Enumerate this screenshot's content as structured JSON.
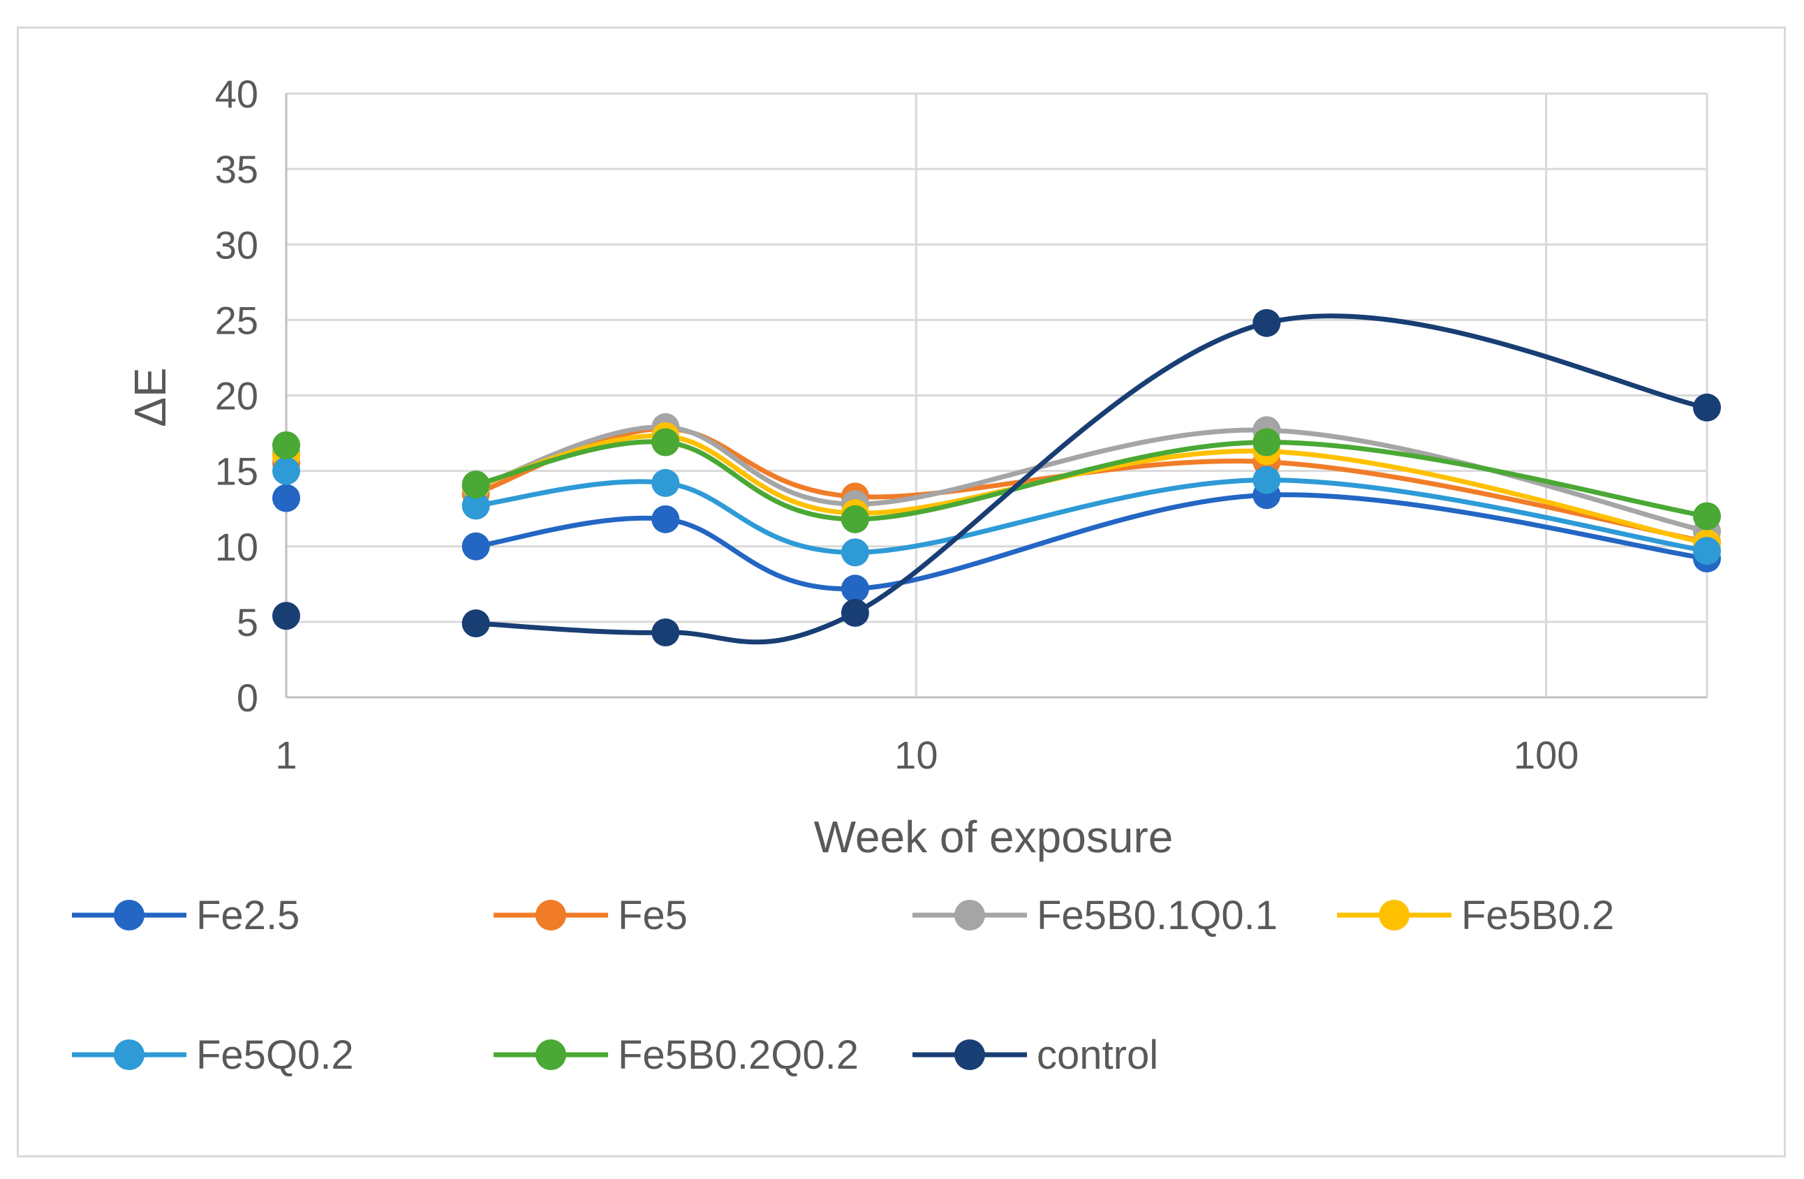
{
  "chart_data": {
    "type": "line",
    "smoothed": true,
    "title": "",
    "xlabel": "Week of exposure",
    "ylabel": "ΔE",
    "x_scale": "log",
    "xlim": [
      1,
      180
    ],
    "ylim": [
      0,
      40
    ],
    "x_ticks": [
      1,
      10,
      100
    ],
    "y_ticks": [
      0,
      5,
      10,
      15,
      20,
      25,
      30,
      35,
      40
    ],
    "grid": true,
    "legend_position": "bottom",
    "x": [
      1,
      2,
      4,
      8,
      36,
      180
    ],
    "series": [
      {
        "name": "Fe2.5",
        "color": "#2366c4",
        "values": [
          13.2,
          10.0,
          11.8,
          7.2,
          13.4,
          9.2
        ]
      },
      {
        "name": "Fe5",
        "color": "#f07c28",
        "values": [
          15.5,
          13.5,
          17.8,
          13.3,
          15.6,
          10.3
        ]
      },
      {
        "name": "Fe5B0.1Q0.1",
        "color": "#a5a5a5",
        "values": [
          16.2,
          13.9,
          17.9,
          12.8,
          17.7,
          11.0
        ]
      },
      {
        "name": "Fe5B0.2",
        "color": "#ffc000",
        "values": [
          16.0,
          14.0,
          17.3,
          12.2,
          16.3,
          10.2
        ]
      },
      {
        "name": "Fe5Q0.2",
        "color": "#2e9ad6",
        "values": [
          15.0,
          12.7,
          14.2,
          9.6,
          14.4,
          9.7
        ]
      },
      {
        "name": "Fe5B0.2Q0.2",
        "color": "#4aa834",
        "values": [
          16.7,
          14.1,
          16.9,
          11.8,
          16.9,
          12.0
        ]
      },
      {
        "name": "control",
        "color": "#183e74",
        "values": [
          5.4,
          4.9,
          4.3,
          5.6,
          24.8,
          19.2
        ]
      }
    ]
  }
}
